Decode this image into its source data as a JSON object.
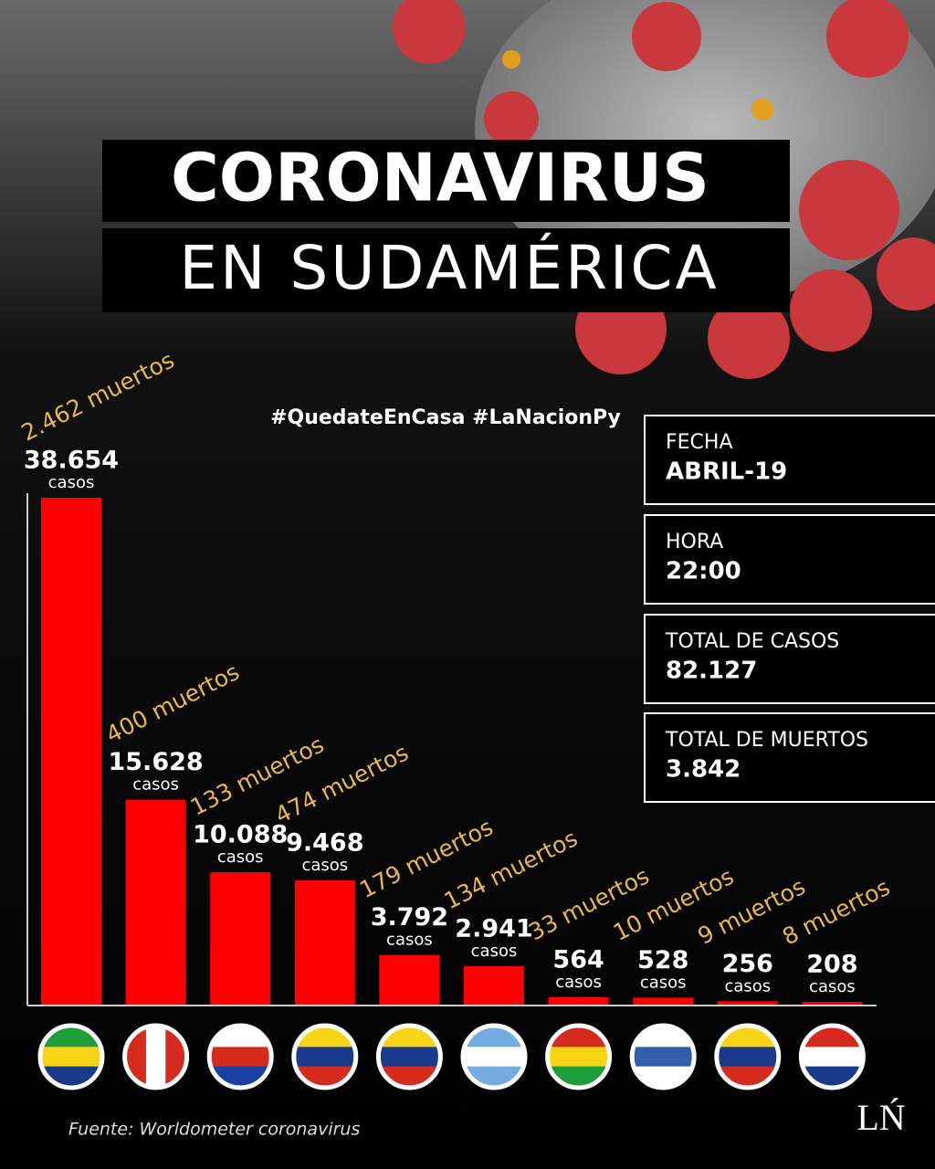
{
  "chart_data": {
    "type": "bar",
    "title": "CORONAVIRUS",
    "subtitle": "EN SUDAMÉRICA",
    "categories": [
      null,
      null,
      null,
      null,
      null,
      null,
      null,
      null,
      null,
      null
    ],
    "values": [
      38654,
      15628,
      10088,
      9468,
      3792,
      2941,
      564,
      528,
      256,
      208
    ],
    "value_labels": [
      "38.654",
      "15.628",
      "10.088",
      "9.468",
      "3.792",
      "2.941",
      "564",
      "528",
      "256",
      "208"
    ],
    "unit_label": "casos",
    "death_labels": [
      "2.462 muertos",
      "400 muertos",
      "133 muertos",
      "474 muertos",
      "179 muertos",
      "134 muertos",
      "33 muertos",
      "10 muertos",
      "9 muertos",
      "8 muertos"
    ],
    "color": "#ff0000",
    "ylim": [
      0,
      38654
    ]
  },
  "hashtags": "#QuedateEnCasa #LaNacionPy",
  "info": [
    {
      "label": "FECHA",
      "value": "ABRIL-19"
    },
    {
      "label": "HORA",
      "value": "22:00"
    },
    {
      "label": "TOTAL DE CASOS",
      "value": "82.127"
    },
    {
      "label": "TOTAL DE MUERTOS",
      "value": "3.842"
    }
  ],
  "source": "Fuente: Worldometer coronavirus",
  "logo": "LŃ"
}
